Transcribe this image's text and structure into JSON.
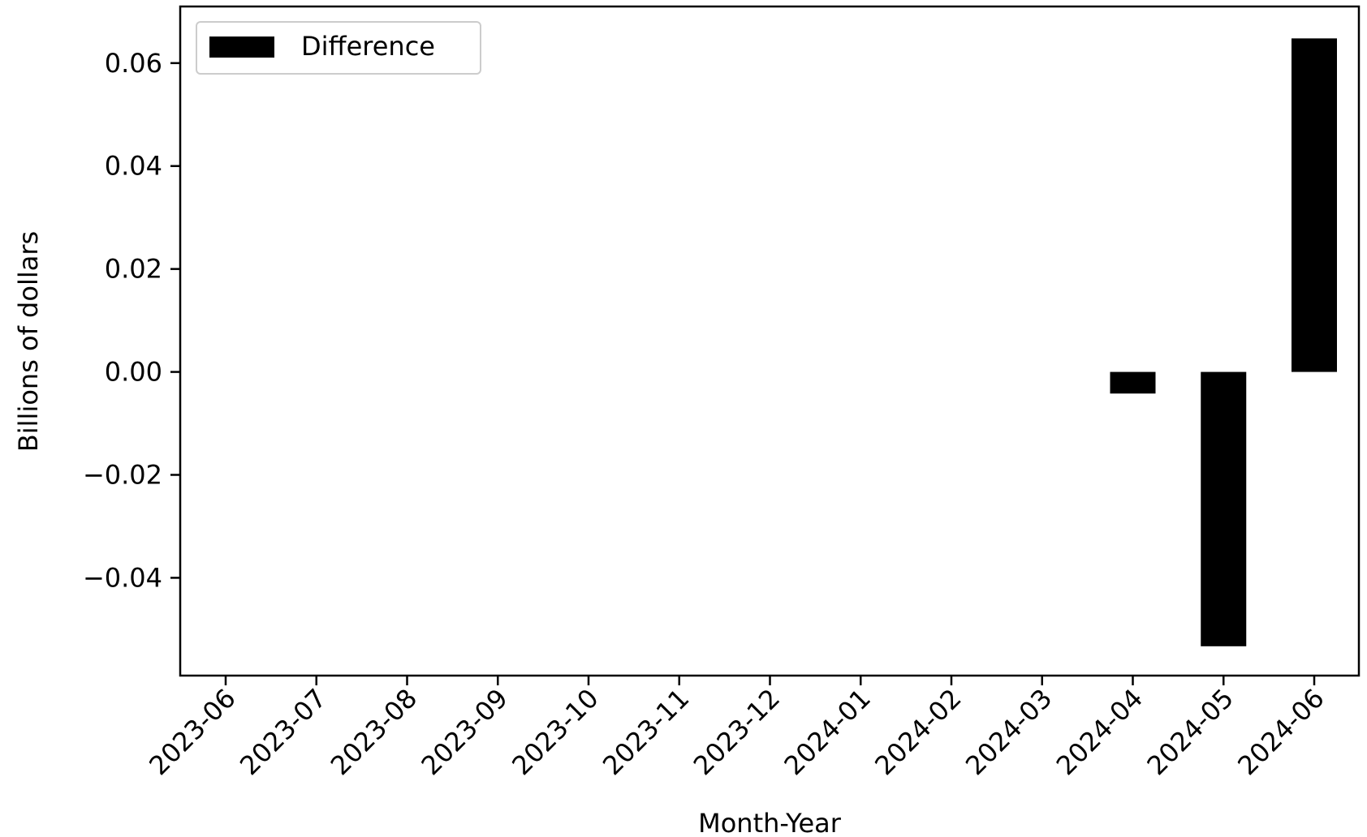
{
  "chart_data": {
    "type": "bar",
    "categories": [
      "2023-06",
      "2023-07",
      "2023-08",
      "2023-09",
      "2023-10",
      "2023-11",
      "2023-12",
      "2024-01",
      "2024-02",
      "2024-03",
      "2024-04",
      "2024-05",
      "2024-06"
    ],
    "series": [
      {
        "name": "Difference",
        "values": [
          0,
          0,
          0,
          0,
          0,
          0,
          0,
          0,
          0,
          0,
          -0.0042,
          -0.0533,
          0.0648
        ],
        "color": "#000000"
      }
    ],
    "xlabel": "Month-Year",
    "ylabel": "Billions of dollars",
    "ylim": [
      -0.059,
      0.071
    ],
    "yticks": [
      -0.04,
      -0.02,
      0.0,
      0.02,
      0.04,
      0.06
    ],
    "ytick_labels": [
      "−0.04",
      "−0.02",
      "0.00",
      "0.02",
      "0.04",
      "0.06"
    ],
    "legend": {
      "label": "Difference",
      "placement": "top-left"
    },
    "grid": false
  }
}
